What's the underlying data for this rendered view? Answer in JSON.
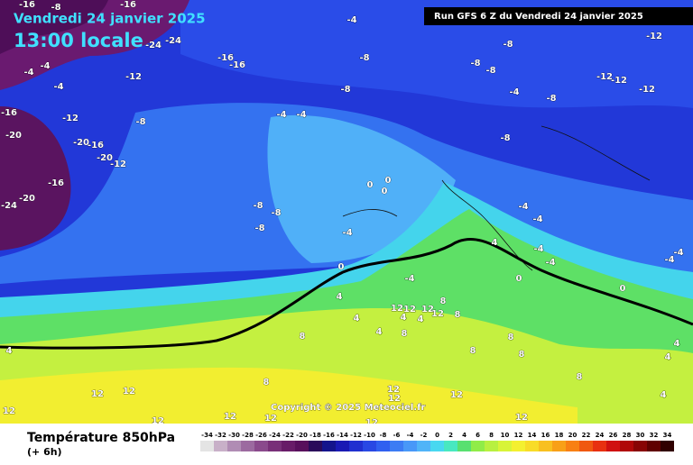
{
  "header": {
    "date": "Vendredi 24 janvier 2025",
    "time": "13:00 locale",
    "run": "Run GFS 6 Z du Vendredi 24 janvier 2025",
    "copyright": "Copyright © 2025 Meteociel.fr"
  },
  "legend": {
    "title": "Température 850hPa",
    "subtitle": "(+ 6h)",
    "values": [
      -34,
      -32,
      -30,
      -28,
      -26,
      -24,
      -22,
      -20,
      -18,
      -16,
      -14,
      -12,
      -10,
      -8,
      -6,
      -4,
      -2,
      0,
      2,
      4,
      6,
      8,
      10,
      12,
      14,
      16,
      18,
      20,
      22,
      24,
      26,
      28,
      30,
      32,
      34
    ],
    "colors": [
      "#e4e4e4",
      "#c8b0c8",
      "#b08cb4",
      "#9c6aa0",
      "#8a4a8c",
      "#783078",
      "#681c68",
      "#58105c",
      "#2a0a5a",
      "#14148c",
      "#1a1ab4",
      "#2030d0",
      "#2848e4",
      "#3060f0",
      "#3c7cf4",
      "#4898f8",
      "#50b4f8",
      "#48d8f0",
      "#48e8c0",
      "#58e070",
      "#90ec48",
      "#b8f040",
      "#d8f438",
      "#f4f030",
      "#f8dc28",
      "#f8c020",
      "#f8a018",
      "#f88014",
      "#f05810",
      "#e83010",
      "#d01010",
      "#b00808",
      "#880404",
      "#600000",
      "#300000"
    ]
  },
  "contour_labels": [
    -16,
    -8,
    -16,
    -24,
    -24,
    -4,
    -12,
    -8,
    -16,
    -16,
    -8,
    -8,
    -8,
    -4,
    -4,
    -4,
    -12,
    -12,
    -12,
    -12,
    -8,
    -4,
    -8,
    -16,
    -12,
    -8,
    -4,
    -4,
    -8,
    -20,
    -16,
    -20,
    -20,
    -12,
    -16,
    -20,
    -24,
    -8,
    -8,
    -8,
    0,
    0,
    0,
    -4,
    -4,
    -4,
    -4,
    -4,
    -4,
    -4,
    4,
    0,
    4,
    -4,
    0,
    0,
    12,
    12,
    12,
    12,
    4,
    4,
    4,
    8,
    8,
    8,
    4,
    8,
    8,
    8,
    4,
    4,
    4,
    8,
    12,
    12,
    12,
    12,
    12,
    12,
    12,
    12,
    12,
    12,
    12,
    4,
    8,
    8
  ]
}
